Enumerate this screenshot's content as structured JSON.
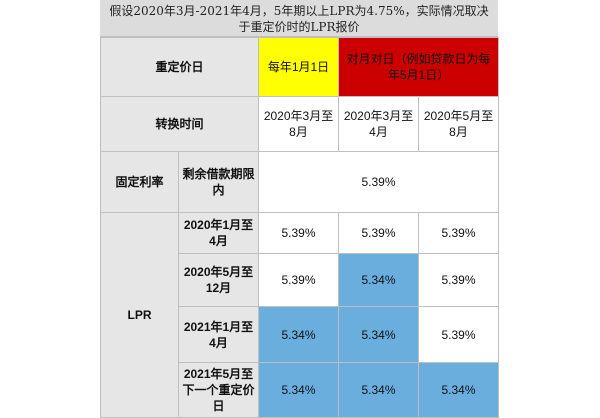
{
  "caption": "假设2020年3月-2021年4月，5年期以上LPR为4.75%，实际情况取决于重定价时的LPR报价",
  "colors": {
    "header_bg": "#e6e6e6",
    "yellow": "#ffff00",
    "red": "#cc0000",
    "blue": "#6aaede"
  },
  "rows": {
    "repricing_day": {
      "label": "重定价日",
      "option_a": "每年1月1日",
      "option_b": "对月对日（例如贷款日为每年5月1日）"
    },
    "switch_time": {
      "label": "转换时间",
      "col1": "2020年3月至8月",
      "col2": "2020年3月至4月",
      "col3": "2020年5月至8月"
    },
    "fixed_rate": {
      "label": "固定利率",
      "sublabel": "剩余借款期限内",
      "value": "5.39%"
    },
    "lpr": {
      "label": "LPR",
      "periods": [
        {
          "label": "2020年1月至4月",
          "values": [
            "5.39%",
            "5.39%",
            "5.39%"
          ]
        },
        {
          "label": "2020年5月至12月",
          "values": [
            "5.39%",
            "5.34%",
            "5.39%"
          ]
        },
        {
          "label": "2021年1月至4月",
          "values": [
            "5.34%",
            "5.34%",
            "5.39%"
          ]
        },
        {
          "label": "2021年5月至下一个重定价日",
          "values": [
            "5.34%",
            "5.34%",
            "5.34%"
          ]
        }
      ]
    }
  }
}
